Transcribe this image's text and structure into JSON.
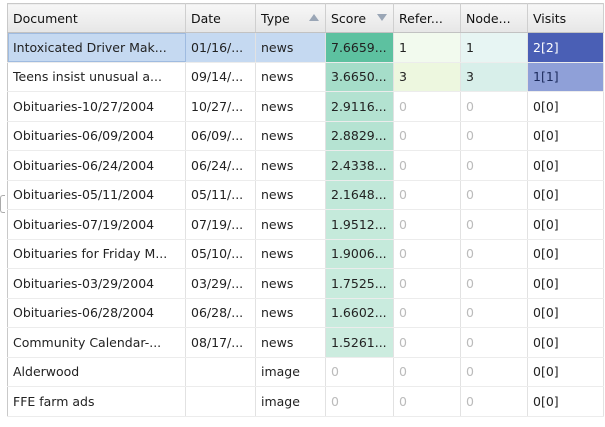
{
  "columns": {
    "document": "Document",
    "date": "Date",
    "type": "Type",
    "score": "Score",
    "references": "Refer...",
    "nodes": "Node...",
    "visits": "Visits"
  },
  "sort": {
    "type": "asc-indicator",
    "score": "desc-indicator"
  },
  "rows": [
    {
      "document": "Intoxicated Driver Mak...",
      "date": "01/16/...",
      "type": "news",
      "score": "7.6659...",
      "score_level": 1.0,
      "references": "1",
      "references_level": 0.2,
      "nodes": "1",
      "nodes_level": 0.2,
      "visits": "2[2]",
      "visits_level": 1.0,
      "selected": true
    },
    {
      "document": "Teens insist unusual a...",
      "date": "09/14/...",
      "type": "news",
      "score": "3.6650...",
      "score_level": 0.48,
      "references": "3",
      "references_level": 0.6,
      "nodes": "3",
      "nodes_level": 0.6,
      "visits": "1[1]",
      "visits_level": 0.5,
      "selected": false
    },
    {
      "document": "Obituaries-10/27/2004",
      "date": "10/27/...",
      "type": "news",
      "score": "2.9116...",
      "score_level": 0.38,
      "references": "0",
      "references_level": 0,
      "nodes": "0",
      "nodes_level": 0,
      "visits": "0[0]",
      "visits_level": 0,
      "selected": false
    },
    {
      "document": "Obituaries-06/09/2004",
      "date": "06/09/...",
      "type": "news",
      "score": "2.8829...",
      "score_level": 0.37,
      "references": "0",
      "references_level": 0,
      "nodes": "0",
      "nodes_level": 0,
      "visits": "0[0]",
      "visits_level": 0,
      "selected": false
    },
    {
      "document": "Obituaries-06/24/2004",
      "date": "06/24/...",
      "type": "news",
      "score": "2.4338...",
      "score_level": 0.32,
      "references": "0",
      "references_level": 0,
      "nodes": "0",
      "nodes_level": 0,
      "visits": "0[0]",
      "visits_level": 0,
      "selected": false
    },
    {
      "document": "Obituaries-05/11/2004",
      "date": "05/11/...",
      "type": "news",
      "score": "2.1648...",
      "score_level": 0.28,
      "references": "0",
      "references_level": 0,
      "nodes": "0",
      "nodes_level": 0,
      "visits": "0[0]",
      "visits_level": 0,
      "selected": false
    },
    {
      "document": "Obituaries-07/19/2004",
      "date": "07/19/...",
      "type": "news",
      "score": "1.9512...",
      "score_level": 0.25,
      "references": "0",
      "references_level": 0,
      "nodes": "0",
      "nodes_level": 0,
      "visits": "0[0]",
      "visits_level": 0,
      "selected": false
    },
    {
      "document": "Obituaries for Friday M...",
      "date": "05/10/...",
      "type": "news",
      "score": "1.9006...",
      "score_level": 0.25,
      "references": "0",
      "references_level": 0,
      "nodes": "0",
      "nodes_level": 0,
      "visits": "0[0]",
      "visits_level": 0,
      "selected": false
    },
    {
      "document": "Obituaries-03/29/2004",
      "date": "03/29/...",
      "type": "news",
      "score": "1.7525...",
      "score_level": 0.23,
      "references": "0",
      "references_level": 0,
      "nodes": "0",
      "nodes_level": 0,
      "visits": "0[0]",
      "visits_level": 0,
      "selected": false
    },
    {
      "document": "Obituaries-06/28/2004",
      "date": "06/28/...",
      "type": "news",
      "score": "1.6602...",
      "score_level": 0.22,
      "references": "0",
      "references_level": 0,
      "nodes": "0",
      "nodes_level": 0,
      "visits": "0[0]",
      "visits_level": 0,
      "selected": false
    },
    {
      "document": "Community Calendar-...",
      "date": "08/17/...",
      "type": "news",
      "score": "1.5261...",
      "score_level": 0.2,
      "references": "0",
      "references_level": 0,
      "nodes": "0",
      "nodes_level": 0,
      "visits": "0[0]",
      "visits_level": 0,
      "selected": false
    },
    {
      "document": "Alderwood",
      "date": "",
      "type": "image",
      "score": "0",
      "score_level": 0,
      "references": "0",
      "references_level": 0,
      "nodes": "0",
      "nodes_level": 0,
      "visits": "0[0]",
      "visits_level": 0,
      "selected": false
    },
    {
      "document": "FFE farm ads",
      "date": "",
      "type": "image",
      "score": "0",
      "score_level": 0,
      "references": "0",
      "references_level": 0,
      "nodes": "0",
      "nodes_level": 0,
      "visits": "0[0]",
      "visits_level": 0,
      "selected": false
    }
  ],
  "colors": {
    "score_max": "#5dc1a0",
    "score_min": "#e8f7ef",
    "references_high": "#e9f4cf",
    "references_low": "#f4fbf6",
    "nodes_high": "#c9e9e1",
    "nodes_low": "#eef8f8",
    "visits_high": "#4a5fb5",
    "visits_mid": "#8fa0d8",
    "selected_row": "#c5d9f1"
  }
}
